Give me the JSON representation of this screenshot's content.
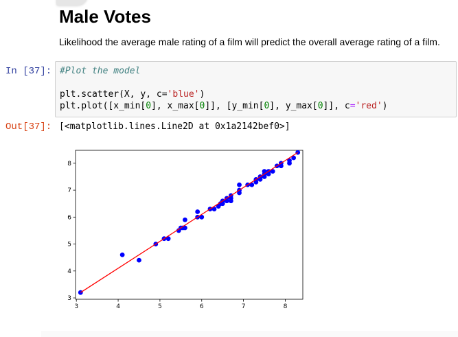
{
  "markdown": {
    "heading": "Male Votes",
    "description": "Likelihood the average male rating of a film will predict the overall average rating of a film."
  },
  "input_prompt": "In [37]:",
  "output_prompt": "Out[37]:",
  "code": {
    "comment": "#Plot the model",
    "line2_pre": "plt.scatter(X, y, c=",
    "line2_str": "'blue'",
    "line2_post": ")",
    "line3_a": "plt.plot([x_min[",
    "line3_b": "], x_max[",
    "line3_c": "]], [y_min[",
    "line3_d": "], y_max[",
    "line3_e": "]], c",
    "line3_f": "'red'",
    "line3_g": ")",
    "zero": "0",
    "eq": "="
  },
  "output_text": "[<matplotlib.lines.Line2D at 0x1a2142bef0>]",
  "colors": {
    "scatter": "#0000ff",
    "line": "#ff0000",
    "in_prompt": "#303f9f",
    "out_prompt": "#d84315"
  },
  "chart_data": {
    "type": "scatter",
    "xlim": [
      2.98,
      8.42
    ],
    "ylim": [
      2.95,
      8.48
    ],
    "xticks": [
      3,
      4,
      5,
      6,
      7,
      8
    ],
    "yticks": [
      3,
      4,
      5,
      6,
      7,
      8
    ],
    "grid": false,
    "points": [
      [
        3.1,
        3.2
      ],
      [
        4.1,
        4.6
      ],
      [
        4.5,
        4.4
      ],
      [
        4.9,
        5.0
      ],
      [
        5.1,
        5.2
      ],
      [
        5.2,
        5.2
      ],
      [
        5.45,
        5.5
      ],
      [
        5.5,
        5.6
      ],
      [
        5.55,
        5.6
      ],
      [
        5.6,
        5.6
      ],
      [
        5.6,
        5.9
      ],
      [
        5.9,
        6.0
      ],
      [
        5.9,
        6.2
      ],
      [
        6.0,
        6.0
      ],
      [
        6.2,
        6.3
      ],
      [
        6.3,
        6.3
      ],
      [
        6.4,
        6.4
      ],
      [
        6.45,
        6.5
      ],
      [
        6.5,
        6.5
      ],
      [
        6.5,
        6.6
      ],
      [
        6.6,
        6.6
      ],
      [
        6.6,
        6.7
      ],
      [
        6.7,
        6.6
      ],
      [
        6.7,
        6.7
      ],
      [
        6.7,
        6.8
      ],
      [
        6.9,
        6.9
      ],
      [
        6.9,
        7.0
      ],
      [
        6.9,
        7.2
      ],
      [
        7.1,
        7.2
      ],
      [
        7.2,
        7.2
      ],
      [
        7.3,
        7.3
      ],
      [
        7.3,
        7.4
      ],
      [
        7.4,
        7.4
      ],
      [
        7.4,
        7.5
      ],
      [
        7.5,
        7.5
      ],
      [
        7.5,
        7.6
      ],
      [
        7.5,
        7.7
      ],
      [
        7.6,
        7.6
      ],
      [
        7.6,
        7.7
      ],
      [
        7.7,
        7.7
      ],
      [
        7.8,
        7.9
      ],
      [
        7.9,
        7.9
      ],
      [
        7.9,
        8.0
      ],
      [
        8.1,
        8.0
      ],
      [
        8.1,
        8.1
      ],
      [
        8.2,
        8.2
      ],
      [
        8.3,
        8.4
      ]
    ],
    "fit_line": {
      "x": [
        3.1,
        8.3
      ],
      "y": [
        3.2,
        8.4
      ]
    }
  }
}
